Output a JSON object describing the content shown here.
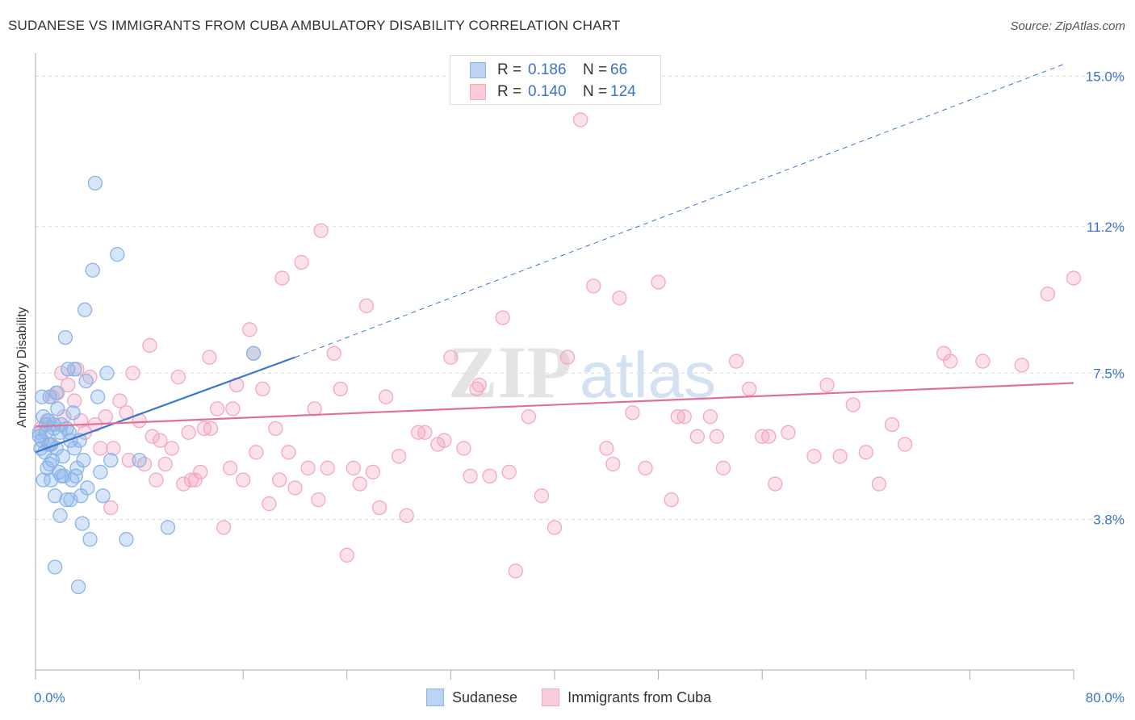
{
  "chart_data": {
    "type": "scatter",
    "title": "SUDANESE VS IMMIGRANTS FROM CUBA AMBULATORY DISABILITY CORRELATION CHART",
    "source": "Source: ZipAtlas.com",
    "ylabel": "Ambulatory Disability",
    "xlabel": "",
    "x_ticks": [
      "0.0%",
      "80.0%"
    ],
    "y_ticks": [
      "15.0%",
      "11.2%",
      "7.5%",
      "3.8%"
    ],
    "y_tick_values": [
      15.0,
      11.2,
      7.5,
      3.8
    ],
    "xlim": [
      0,
      80
    ],
    "ylim": [
      0,
      15.5
    ],
    "watermark": "ZIPatlas",
    "legend": {
      "rows": [
        {
          "r_label": "R =",
          "r_value": "0.186",
          "n_label": "N =",
          "n_value": "66"
        },
        {
          "r_label": "R =",
          "r_value": "0.140",
          "n_label": "N =",
          "n_value": "124"
        }
      ]
    },
    "series": [
      {
        "name": "Sudanese",
        "color": "#8ab4e8",
        "line_color": "#3a78d0",
        "trend": {
          "x": [
            0,
            20
          ],
          "y": [
            5.5,
            7.9
          ],
          "extend_to_x": 80,
          "extend_to_y": 15.0
        },
        "points": [
          [
            0.3,
            6.0
          ],
          [
            0.5,
            5.8
          ],
          [
            0.6,
            6.4
          ],
          [
            0.7,
            5.5
          ],
          [
            0.8,
            6.2
          ],
          [
            0.9,
            5.1
          ],
          [
            1.0,
            5.7
          ],
          [
            1.1,
            6.9
          ],
          [
            1.2,
            4.8
          ],
          [
            1.3,
            5.3
          ],
          [
            1.4,
            6.1
          ],
          [
            1.5,
            4.4
          ],
          [
            1.6,
            5.6
          ],
          [
            1.7,
            6.6
          ],
          [
            1.8,
            5.0
          ],
          [
            1.9,
            3.9
          ],
          [
            2.0,
            6.2
          ],
          [
            2.1,
            5.4
          ],
          [
            2.2,
            4.9
          ],
          [
            2.3,
            8.4
          ],
          [
            2.4,
            4.3
          ],
          [
            2.5,
            7.6
          ],
          [
            2.6,
            6.0
          ],
          [
            2.7,
            5.8
          ],
          [
            2.8,
            4.8
          ],
          [
            2.9,
            6.5
          ],
          [
            3.0,
            7.6
          ],
          [
            3.1,
            4.9
          ],
          [
            3.2,
            5.1
          ],
          [
            3.3,
            2.1
          ],
          [
            3.4,
            5.8
          ],
          [
            3.5,
            4.4
          ],
          [
            3.6,
            3.7
          ],
          [
            3.7,
            5.3
          ],
          [
            3.8,
            9.1
          ],
          [
            3.9,
            7.3
          ],
          [
            4.0,
            4.6
          ],
          [
            4.2,
            3.3
          ],
          [
            4.4,
            10.1
          ],
          [
            4.6,
            12.3
          ],
          [
            4.8,
            6.9
          ],
          [
            5.0,
            5.0
          ],
          [
            5.2,
            4.4
          ],
          [
            5.5,
            7.5
          ],
          [
            5.8,
            5.3
          ],
          [
            6.3,
            10.5
          ],
          [
            7.0,
            3.3
          ],
          [
            8.0,
            5.3
          ],
          [
            10.2,
            3.6
          ],
          [
            16.8,
            8.0
          ],
          [
            1.5,
            2.6
          ],
          [
            1.0,
            6.3
          ],
          [
            0.4,
            5.6
          ],
          [
            0.6,
            4.8
          ],
          [
            2.0,
            4.9
          ],
          [
            1.2,
            5.7
          ],
          [
            0.8,
            6.0
          ],
          [
            2.4,
            6.1
          ],
          [
            3.0,
            5.6
          ],
          [
            1.6,
            7.0
          ],
          [
            0.5,
            6.9
          ],
          [
            1.9,
            6.0
          ],
          [
            2.7,
            4.3
          ],
          [
            1.1,
            5.2
          ],
          [
            0.3,
            5.9
          ],
          [
            1.4,
            6.2
          ]
        ]
      },
      {
        "name": "Immigrants from Cuba",
        "color": "#f4a8c0",
        "line_color": "#e07098",
        "trend": {
          "x": [
            0,
            80
          ],
          "y": [
            6.15,
            7.25
          ]
        },
        "points": [
          [
            0.4,
            6.1
          ],
          [
            0.9,
            6.3
          ],
          [
            1.3,
            6.9
          ],
          [
            1.7,
            7.0
          ],
          [
            2.0,
            7.5
          ],
          [
            2.5,
            7.2
          ],
          [
            3.0,
            6.8
          ],
          [
            3.5,
            6.3
          ],
          [
            3.8,
            6.0
          ],
          [
            4.2,
            7.4
          ],
          [
            4.6,
            6.2
          ],
          [
            5.0,
            5.6
          ],
          [
            5.4,
            6.4
          ],
          [
            5.8,
            4.1
          ],
          [
            6.0,
            5.6
          ],
          [
            6.5,
            6.8
          ],
          [
            7.0,
            6.5
          ],
          [
            7.5,
            7.5
          ],
          [
            8.0,
            6.3
          ],
          [
            8.4,
            5.2
          ],
          [
            8.8,
            8.2
          ],
          [
            9.3,
            4.8
          ],
          [
            9.6,
            5.8
          ],
          [
            10.0,
            5.2
          ],
          [
            10.5,
            5.6
          ],
          [
            11.0,
            7.4
          ],
          [
            11.4,
            4.7
          ],
          [
            11.8,
            6.0
          ],
          [
            12.3,
            4.8
          ],
          [
            12.7,
            5.0
          ],
          [
            13.0,
            6.1
          ],
          [
            13.4,
            7.9
          ],
          [
            14.0,
            6.6
          ],
          [
            14.5,
            3.6
          ],
          [
            15.0,
            5.1
          ],
          [
            15.5,
            7.2
          ],
          [
            16.0,
            4.8
          ],
          [
            16.5,
            8.6
          ],
          [
            17.0,
            5.5
          ],
          [
            17.5,
            7.1
          ],
          [
            18.0,
            4.2
          ],
          [
            18.5,
            6.1
          ],
          [
            19.0,
            9.9
          ],
          [
            19.5,
            5.5
          ],
          [
            20.0,
            4.6
          ],
          [
            20.5,
            10.3
          ],
          [
            21.0,
            5.1
          ],
          [
            21.5,
            6.6
          ],
          [
            22.0,
            11.1
          ],
          [
            22.5,
            5.1
          ],
          [
            23.0,
            8.0
          ],
          [
            23.5,
            7.1
          ],
          [
            24.0,
            2.9
          ],
          [
            24.5,
            5.1
          ],
          [
            25.0,
            4.7
          ],
          [
            25.5,
            9.2
          ],
          [
            26.0,
            5.0
          ],
          [
            27.0,
            6.9
          ],
          [
            28.0,
            5.4
          ],
          [
            28.6,
            3.9
          ],
          [
            30.0,
            6.0
          ],
          [
            31.0,
            5.7
          ],
          [
            32.0,
            7.9
          ],
          [
            33.0,
            5.6
          ],
          [
            34.0,
            7.1
          ],
          [
            35.0,
            4.9
          ],
          [
            36.0,
            8.9
          ],
          [
            37.0,
            2.5
          ],
          [
            38.0,
            6.4
          ],
          [
            39.0,
            4.4
          ],
          [
            40.0,
            3.6
          ],
          [
            41.0,
            7.9
          ],
          [
            42.0,
            13.9
          ],
          [
            43.0,
            9.7
          ],
          [
            44.0,
            5.6
          ],
          [
            45.0,
            9.4
          ],
          [
            46.0,
            6.5
          ],
          [
            47.0,
            5.1
          ],
          [
            48.0,
            9.8
          ],
          [
            49.0,
            4.3
          ],
          [
            50.0,
            6.4
          ],
          [
            51.0,
            5.9
          ],
          [
            52.0,
            6.4
          ],
          [
            53.0,
            5.1
          ],
          [
            54.0,
            7.8
          ],
          [
            55.0,
            7.1
          ],
          [
            56.0,
            5.9
          ],
          [
            57.0,
            4.7
          ],
          [
            58.0,
            6.0
          ],
          [
            60.0,
            5.4
          ],
          [
            61.0,
            7.2
          ],
          [
            63.0,
            6.7
          ],
          [
            64.0,
            5.5
          ],
          [
            65.0,
            4.7
          ],
          [
            67.0,
            5.7
          ],
          [
            70.0,
            8.0
          ],
          [
            73.0,
            7.8
          ],
          [
            76.0,
            7.7
          ],
          [
            78.0,
            9.5
          ],
          [
            80.0,
            9.9
          ],
          [
            16.8,
            8.0
          ],
          [
            12.0,
            4.8
          ],
          [
            7.2,
            5.3
          ],
          [
            3.2,
            7.6
          ],
          [
            2.2,
            6.4
          ],
          [
            1.1,
            5.7
          ],
          [
            9.0,
            5.9
          ],
          [
            13.5,
            6.1
          ],
          [
            18.8,
            4.8
          ],
          [
            21.8,
            4.3
          ],
          [
            26.5,
            4.1
          ],
          [
            29.5,
            6.0
          ],
          [
            31.5,
            5.8
          ],
          [
            33.5,
            4.9
          ],
          [
            36.5,
            5.0
          ],
          [
            44.5,
            5.2
          ],
          [
            49.5,
            6.4
          ],
          [
            52.5,
            5.9
          ],
          [
            56.5,
            5.9
          ],
          [
            62.0,
            5.4
          ],
          [
            66.0,
            6.2
          ],
          [
            70.5,
            7.8
          ],
          [
            34.2,
            7.2
          ],
          [
            15.2,
            6.6
          ]
        ]
      }
    ]
  }
}
